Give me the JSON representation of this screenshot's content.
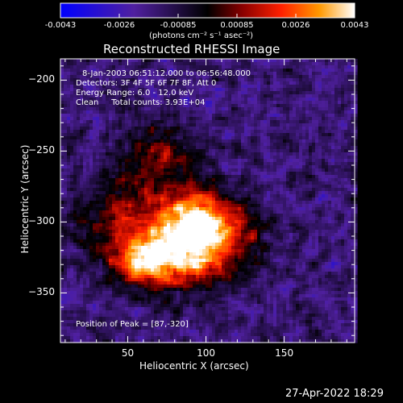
{
  "chart_data": {
    "type": "heatmap",
    "title": "Reconstructed RHESSI Image",
    "xlabel": "Heliocentric X (arcsec)",
    "ylabel": "Heliocentric Y (arcsec)",
    "xlim": [
      7,
      195
    ],
    "ylim": [
      -385,
      -185
    ],
    "xticks": [
      50,
      100,
      150
    ],
    "yticks": [
      -200,
      -250,
      -300,
      -350
    ],
    "colorbar": {
      "unit_label": "(photons cm⁻² s⁻¹ asec⁻²)",
      "ticks": [
        "-0.0043",
        "-0.0026",
        "-0.00085",
        "0.00085",
        "0.0026",
        "0.0043"
      ],
      "range": [
        -0.0043,
        0.0043
      ]
    },
    "sources": [
      {
        "x": 87,
        "y": -320,
        "amplitude": 1.0,
        "sigma": 18
      },
      {
        "x": 60,
        "y": -330,
        "amplitude": 0.85,
        "sigma": 12
      },
      {
        "x": 95,
        "y": -295,
        "amplitude": 0.75,
        "sigma": 14
      },
      {
        "x": 50,
        "y": -300,
        "amplitude": 0.55,
        "sigma": 22
      },
      {
        "x": 115,
        "y": -310,
        "amplitude": 0.5,
        "sigma": 18
      },
      {
        "x": 70,
        "y": -255,
        "amplitude": 0.45,
        "sigma": 16
      }
    ],
    "peak": [
      87,
      -320
    ]
  },
  "annotations": {
    "time_range": "8-Jan-2003 06:51:12.000 to 06:56:48.000",
    "detectors": "Detectors: 3F 4F 5F 6F 7F 8F, Att 0",
    "energy": "Energy Range: 6.0 - 12.0 keV",
    "clean": "Clean     Total counts: 3.93E+04",
    "peak": "Position of Peak = [87,-320]"
  },
  "timestamp": "27-Apr-2022 18:29"
}
